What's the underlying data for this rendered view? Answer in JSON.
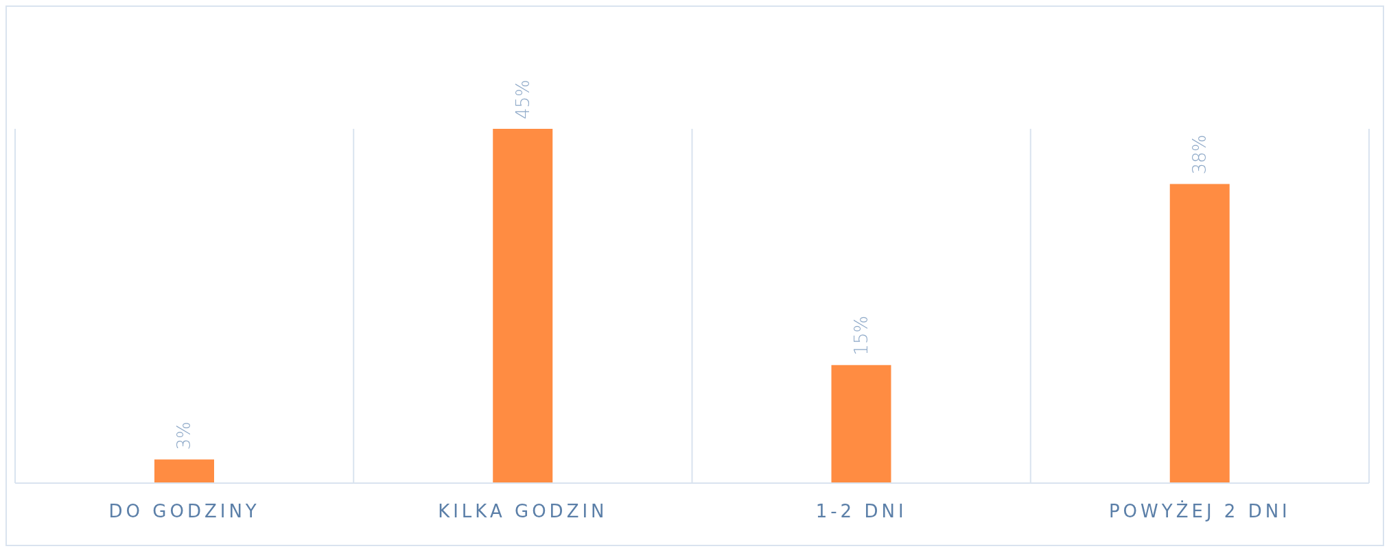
{
  "chart_data": {
    "type": "bar",
    "categories": [
      "DO GODZINY",
      "KILKA GODZIN",
      "1-2 DNI",
      "POWYŻEJ 2 DNI"
    ],
    "values": [
      3,
      45,
      15,
      38
    ],
    "value_labels": [
      "3%",
      "45%",
      "15%",
      "38%"
    ],
    "color": "#ff8c42",
    "grid": "x"
  }
}
